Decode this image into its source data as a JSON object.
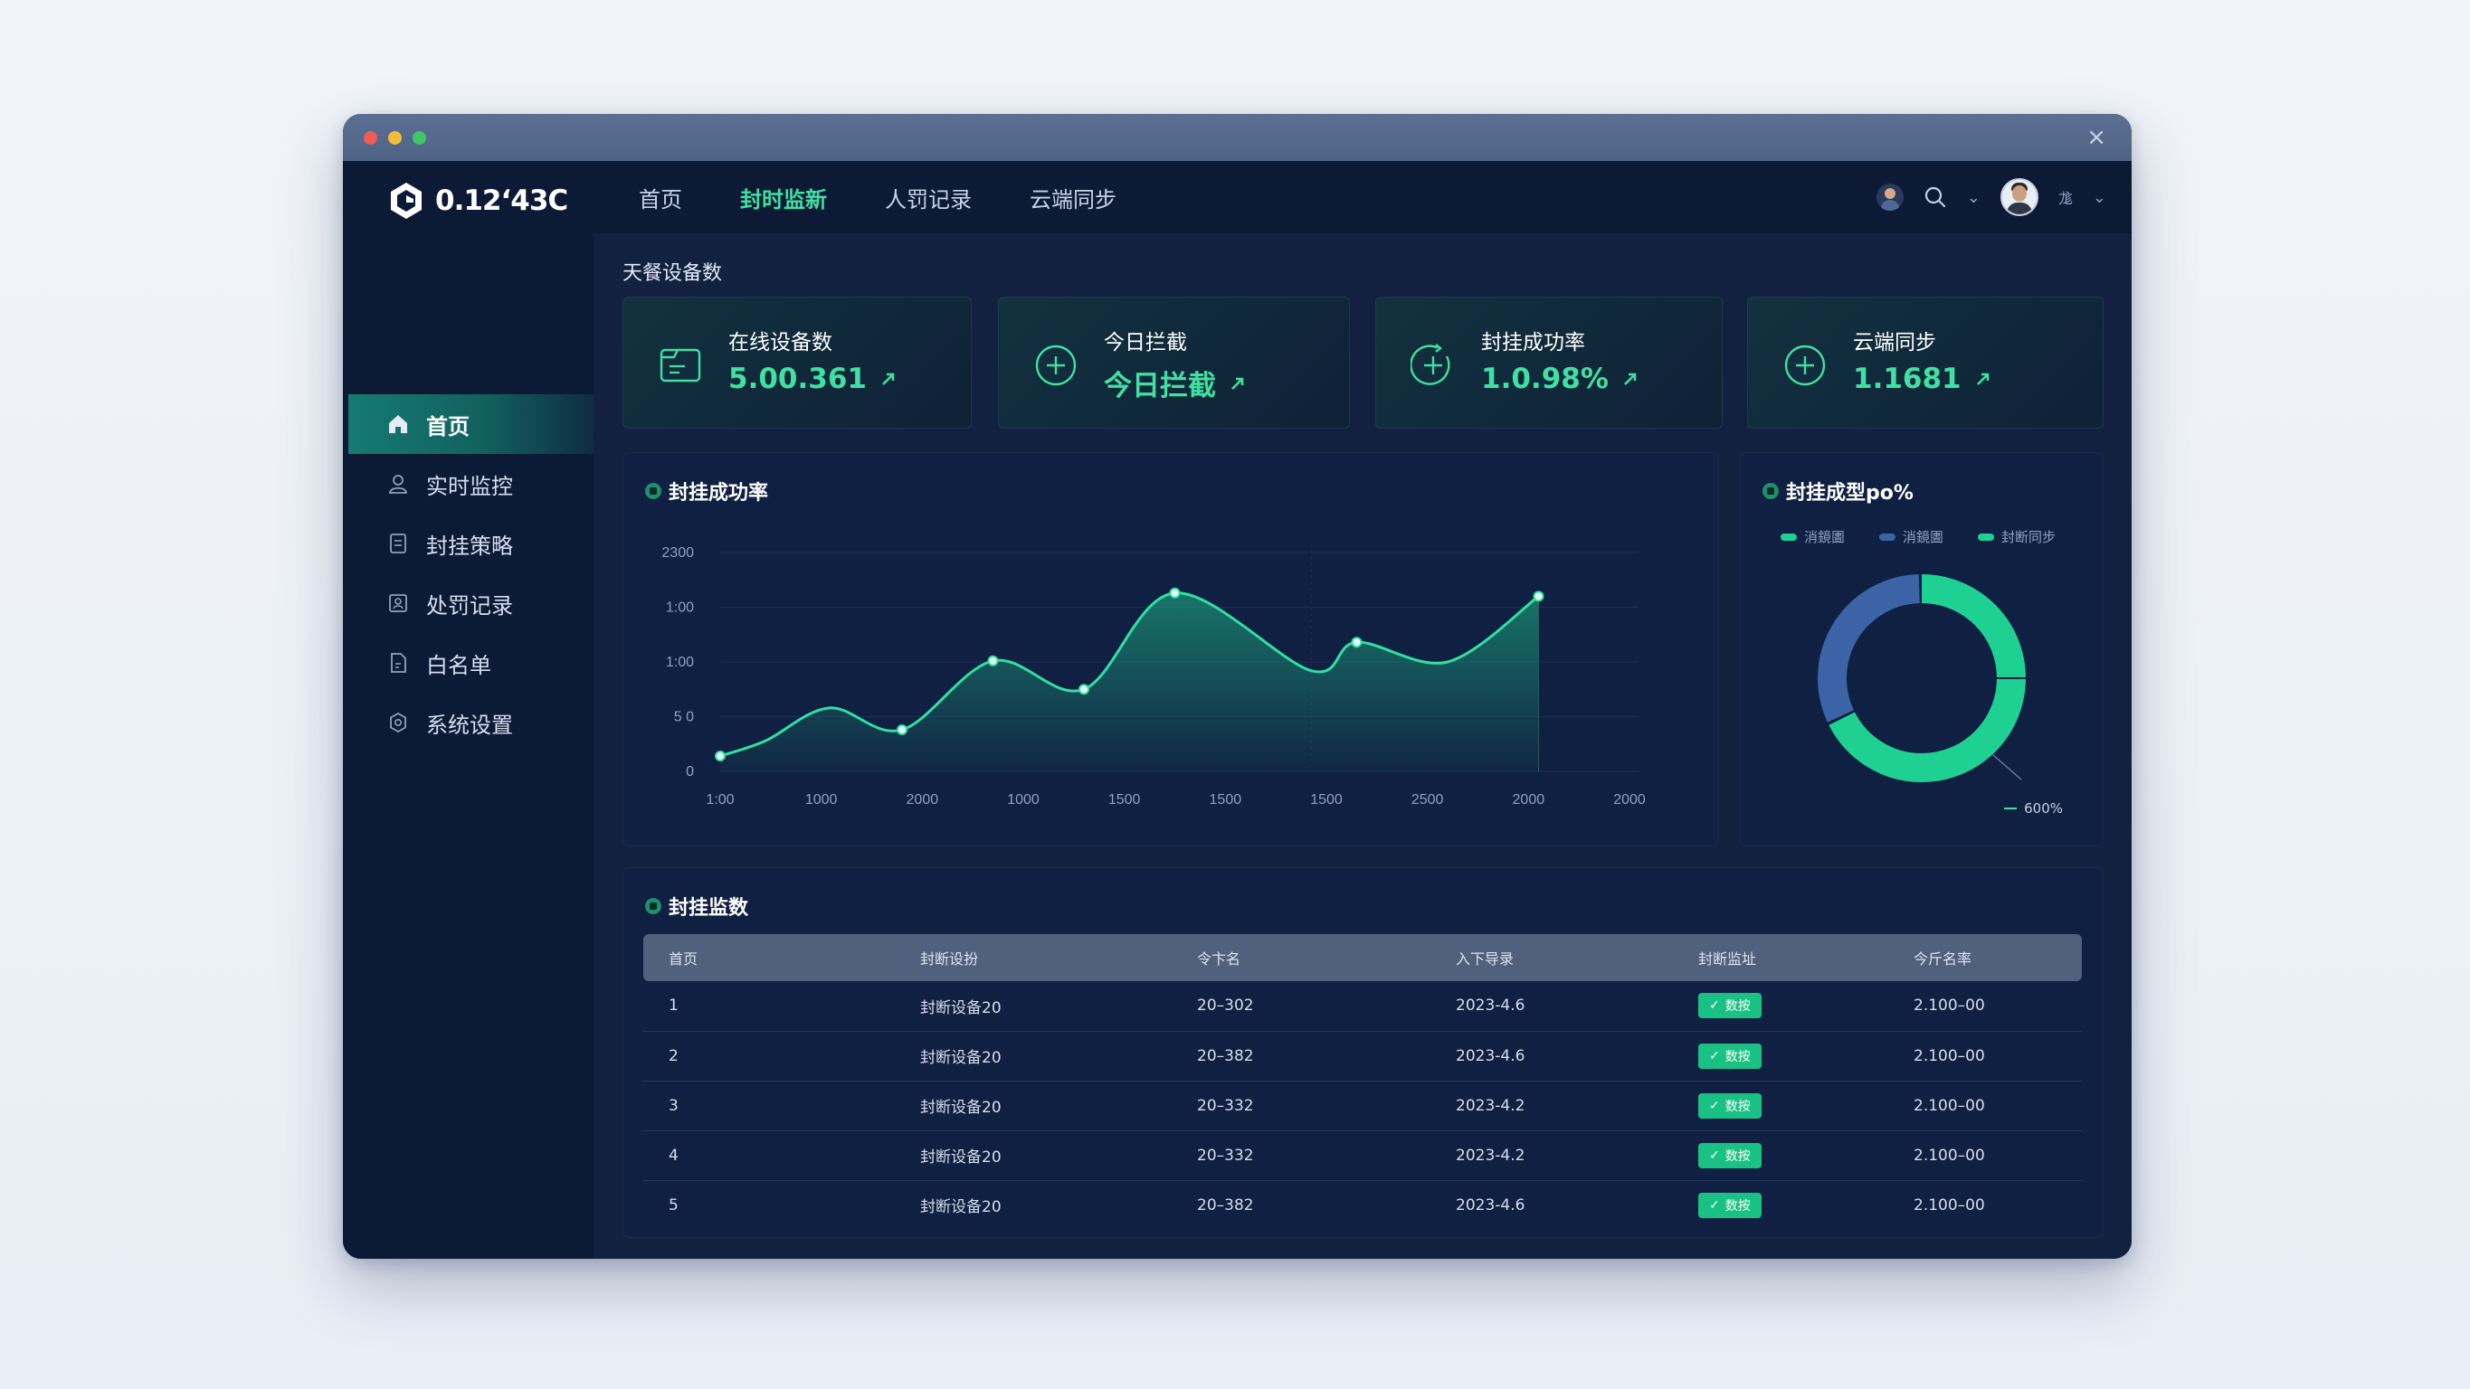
{
  "window": {
    "close_glyph": "×"
  },
  "brand": {
    "logo_text": "0.12ʻ43C",
    "icon": "brand-logo-icon"
  },
  "topnav": {
    "tabs": [
      {
        "label": "首页",
        "active": false
      },
      {
        "label": "封时监新",
        "active": true
      },
      {
        "label": "人罚记录",
        "active": false
      },
      {
        "label": "云端同步",
        "active": false
      }
    ],
    "user_name": "尨"
  },
  "sidebar": {
    "items": [
      {
        "label": "首页",
        "icon": "home-icon",
        "active": true
      },
      {
        "label": "实时监控",
        "icon": "user-icon",
        "active": false
      },
      {
        "label": "封挂策略",
        "icon": "document-icon",
        "active": false
      },
      {
        "label": "处罚记录",
        "icon": "record-icon",
        "active": false
      },
      {
        "label": "白名单",
        "icon": "file-icon",
        "active": false
      },
      {
        "label": "系统设置",
        "icon": "settings-icon",
        "active": false
      }
    ]
  },
  "main": {
    "section_title": "天餐设备数"
  },
  "stats": [
    {
      "label": "在线设备数",
      "value": "5.00.361",
      "icon": "device-icon",
      "trend": "up"
    },
    {
      "label": "今日拦截",
      "value": "今日拦截",
      "icon": "plus-circle-icon",
      "trend": "up"
    },
    {
      "label": "封挂成功率",
      "value": "1.0.98%",
      "icon": "refresh-plus-icon",
      "trend": "up"
    },
    {
      "label": "云端同步",
      "value": "1.1681",
      "icon": "plus-circle-icon",
      "trend": "up"
    }
  ],
  "line_panel": {
    "title": "封挂成功率"
  },
  "donut_panel": {
    "title": "封挂成型po%",
    "legend": [
      {
        "label": "消鏡圕",
        "color": "#1ed193"
      },
      {
        "label": "消鏡圕",
        "color": "#3b63a6"
      },
      {
        "label": "封断同步",
        "color": "#1ed193"
      }
    ],
    "callout": "600%"
  },
  "table_panel": {
    "title": "封挂监数",
    "headers": [
      "首页",
      "封断设扮",
      "令卞名",
      "入下导录",
      "封断监址",
      "今斤名率"
    ],
    "rows": [
      {
        "no": "1",
        "device": "封断设备20",
        "code": "20–302",
        "date": "2023-4.6",
        "status": "数按",
        "rate": "2.100–00"
      },
      {
        "no": "2",
        "device": "封断设备20",
        "code": "20–382",
        "date": "2023-4.6",
        "status": "数按",
        "rate": "2.100–00"
      },
      {
        "no": "3",
        "device": "封断设备20",
        "code": "20–332",
        "date": "2023-4.2",
        "status": "数按",
        "rate": "2.100–00"
      },
      {
        "no": "4",
        "device": "封断设备20",
        "code": "20–332",
        "date": "2023-4.2",
        "status": "数按",
        "rate": "2.100–00"
      },
      {
        "no": "5",
        "device": "封断设备20",
        "code": "20–382",
        "date": "2023-4.6",
        "status": "数按",
        "rate": "2.100–00"
      }
    ]
  },
  "colors": {
    "accent": "#3fe0a2",
    "donut_secondary": "#3b63a6",
    "background": "#0e1b38"
  },
  "chart_data": [
    {
      "type": "area",
      "title": "封挂成功率",
      "y_tick_labels": [
        "2300",
        "1:00",
        "1:00",
        "5 0",
        "0"
      ],
      "x_tick_labels": [
        "1:00",
        "1000",
        "2000",
        "1000",
        "1500",
        "1500",
        "1500",
        "2500",
        "2000",
        "2000"
      ],
      "ylim": [
        0,
        200
      ],
      "x": [
        0,
        0.5,
        1.2,
        2,
        3,
        4,
        5,
        6.5,
        7,
        8,
        9,
        10
      ],
      "values": [
        14,
        28,
        58,
        38,
        101,
        75,
        163,
        92,
        118,
        100,
        160,
        0
      ],
      "points_marked": [
        0,
        3,
        4,
        5,
        6,
        8,
        10
      ],
      "grid": true
    },
    {
      "type": "pie",
      "title": "封挂成型po%",
      "segments": [
        {
          "label": "消鏡圕",
          "value": 68,
          "color": "#1ed193"
        },
        {
          "label": "消鏡圕",
          "value": 32,
          "color": "#3b63a6"
        }
      ],
      "callout": "600%"
    }
  ]
}
